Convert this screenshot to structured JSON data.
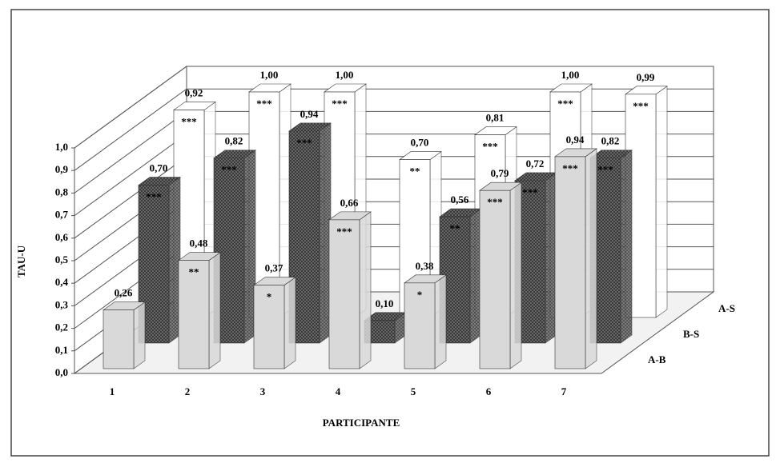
{
  "chart_data": {
    "type": "bar3d",
    "y_label": "TAU-U",
    "x_label": "PARTICIPANTE",
    "categories": [
      "1",
      "2",
      "3",
      "4",
      "5",
      "6",
      "7"
    ],
    "ylim": [
      0,
      1
    ],
    "yticks": [
      {
        "value": 0,
        "label": "0,0"
      },
      {
        "value": 0.1,
        "label": "0,1"
      },
      {
        "value": 0.2,
        "label": "0,2"
      },
      {
        "value": 0.3,
        "label": "0,3"
      },
      {
        "value": 0.4,
        "label": "0,4"
      },
      {
        "value": 0.5,
        "label": "0,5"
      },
      {
        "value": 0.6,
        "label": "0,6"
      },
      {
        "value": 0.7,
        "label": "0,7"
      },
      {
        "value": 0.8,
        "label": "0,8"
      },
      {
        "value": 0.9,
        "label": "0,9"
      },
      {
        "value": 1,
        "label": "1,0"
      }
    ],
    "grid": true,
    "series": [
      {
        "name": "A-B",
        "color": "#d9d9d9",
        "pattern": "solid",
        "values": [
          0.26,
          0.48,
          0.37,
          0.66,
          0.38,
          0.79,
          0.94
        ],
        "value_labels": [
          "0,26",
          "0,48",
          "0,37",
          "0,66",
          "0,38",
          "0,79",
          "0,94"
        ],
        "significance": [
          null,
          "**",
          "*",
          "***",
          "*",
          "***",
          "***"
        ]
      },
      {
        "name": "B-S",
        "color": "#3a3a3a",
        "pattern": "dots",
        "values": [
          0.7,
          0.82,
          0.94,
          0.1,
          0.56,
          0.72,
          0.82
        ],
        "value_labels": [
          "0,70",
          "0,82",
          "0,94",
          "0,10",
          "0,56",
          "0,72",
          "0,82"
        ],
        "significance": [
          "***",
          "***",
          "***",
          null,
          "**",
          "***",
          "***"
        ]
      },
      {
        "name": "A-S",
        "color": "#ffffff",
        "pattern": "solid",
        "values": [
          0.92,
          1.0,
          1.0,
          0.7,
          0.81,
          1.0,
          0.99
        ],
        "value_labels": [
          "0,92",
          "1,00",
          "1,00",
          "0,70",
          "0,81",
          "1,00",
          "0,99"
        ],
        "significance": [
          "***",
          "***",
          "***",
          "**",
          "***",
          "***",
          "***"
        ]
      }
    ]
  }
}
